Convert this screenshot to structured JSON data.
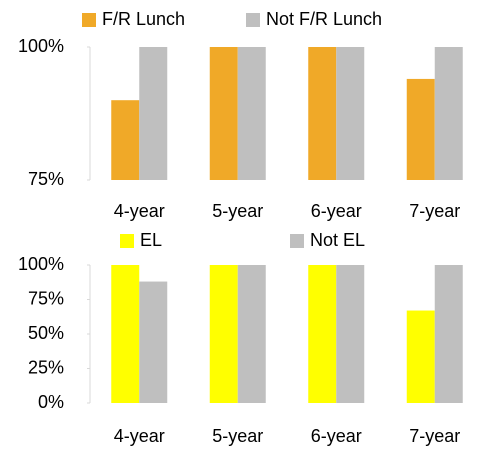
{
  "chart_data": [
    {
      "type": "bar",
      "categories": [
        "4-year",
        "5-year",
        "6-year",
        "7-year"
      ],
      "series": [
        {
          "name": "F/R Lunch",
          "color": "#f0a928",
          "values": [
            90,
            100,
            100,
            94
          ]
        },
        {
          "name": "Not F/R Lunch",
          "color": "#bfbfbf",
          "values": [
            100,
            100,
            100,
            100
          ]
        }
      ],
      "ylim": [
        75,
        100
      ],
      "yticks": [
        {
          "value": 75,
          "label": "75%"
        },
        {
          "value": 100,
          "label": "100%"
        }
      ]
    },
    {
      "type": "bar",
      "categories": [
        "4-year",
        "5-year",
        "6-year",
        "7-year"
      ],
      "series": [
        {
          "name": "EL",
          "color": "#ffff00",
          "values": [
            100,
            100,
            100,
            67
          ]
        },
        {
          "name": "Not EL",
          "color": "#bfbfbf",
          "values": [
            88,
            100,
            100,
            100
          ]
        }
      ],
      "ylim": [
        0,
        100
      ],
      "yticks": [
        {
          "value": 0,
          "label": "0%"
        },
        {
          "value": 25,
          "label": "25%"
        },
        {
          "value": 50,
          "label": "50%"
        },
        {
          "value": 75,
          "label": "75%"
        },
        {
          "value": 100,
          "label": "100%"
        }
      ]
    }
  ]
}
